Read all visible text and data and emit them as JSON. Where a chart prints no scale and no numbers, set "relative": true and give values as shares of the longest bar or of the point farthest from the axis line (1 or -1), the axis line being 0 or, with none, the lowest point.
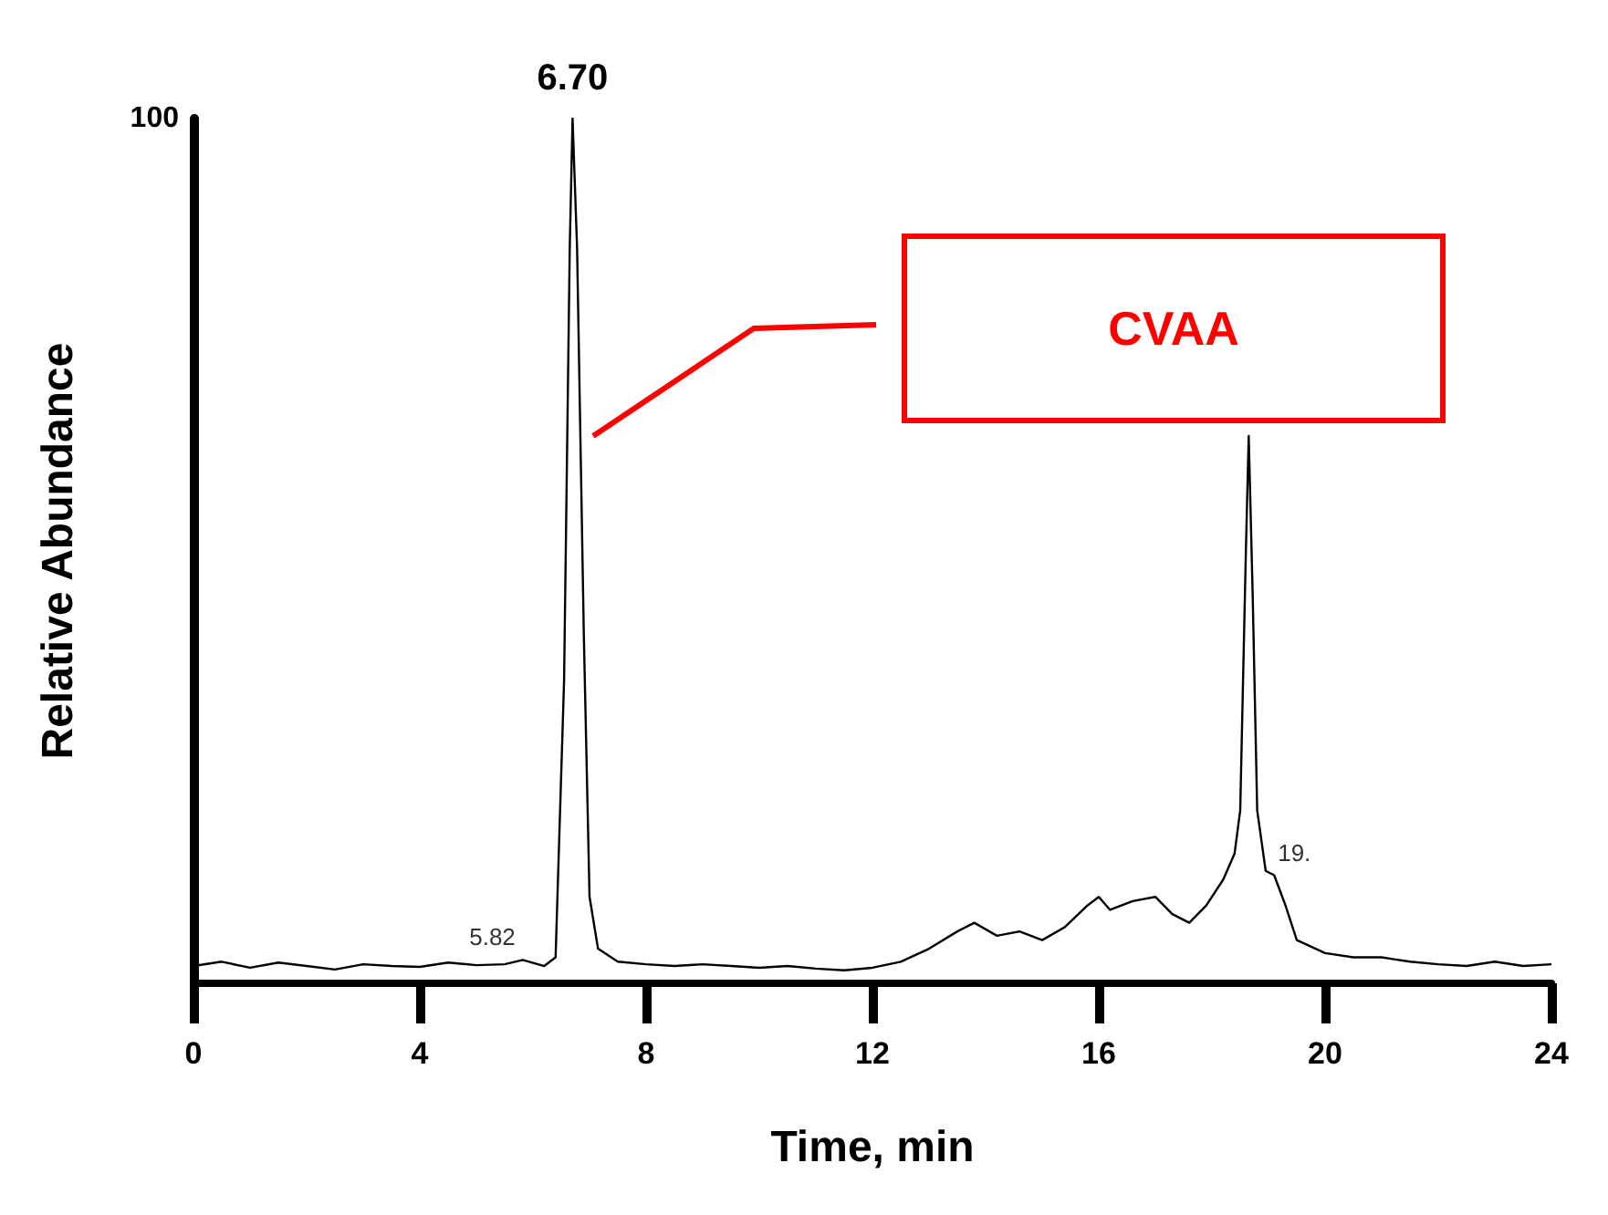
{
  "chart_data": {
    "type": "line",
    "relative": true,
    "xlabel": "Time, min",
    "ylabel": "Relative Abundance",
    "xlim": [
      0,
      24
    ],
    "xticks": [
      0,
      4,
      8,
      12,
      16,
      20,
      24
    ],
    "grid": false,
    "marker": "none",
    "line_style": "solid",
    "annotations": [
      "100",
      {
        "text": "6.70",
        "x": 6.7,
        "y": 1
      },
      {
        "text": "5.82",
        "x": 5.82,
        "y": 0.027
      },
      {
        "text": "19.",
        "x": 19.1,
        "y": 0.125
      },
      "CVAA"
    ],
    "series": [
      {
        "color": "#000000",
        "x": [
          0,
          0.5,
          1,
          1.5,
          2,
          2.5,
          3,
          3.5,
          4,
          4.5,
          5,
          5.5,
          5.82,
          6.2,
          6.4,
          6.55,
          6.65,
          6.7,
          6.78,
          6.9,
          7,
          7.15,
          7.5,
          8,
          8.5,
          9,
          9.5,
          10,
          10.5,
          11,
          11.5,
          12,
          12.5,
          13,
          13.5,
          13.8,
          14.2,
          14.6,
          15,
          15.4,
          15.8,
          16,
          16.2,
          16.6,
          17,
          17.3,
          17.6,
          17.9,
          18.2,
          18.4,
          18.5,
          18.6,
          18.65,
          18.72,
          18.8,
          18.95,
          19.1,
          19.3,
          19.5,
          20,
          20.5,
          21,
          21.5,
          22,
          22.5,
          23,
          23.5,
          24
        ],
        "values": [
          0.02,
          0.025,
          0.018,
          0.024,
          0.02,
          0.016,
          0.022,
          0.02,
          0.019,
          0.024,
          0.021,
          0.022,
          0.027,
          0.02,
          0.03,
          0.35,
          0.85,
          1,
          0.85,
          0.4,
          0.1,
          0.04,
          0.025,
          0.022,
          0.02,
          0.022,
          0.02,
          0.018,
          0.02,
          0.017,
          0.015,
          0.018,
          0.025,
          0.04,
          0.06,
          0.07,
          0.055,
          0.06,
          0.05,
          0.065,
          0.09,
          0.1,
          0.085,
          0.095,
          0.1,
          0.08,
          0.07,
          0.09,
          0.12,
          0.15,
          0.2,
          0.5,
          0.633,
          0.45,
          0.2,
          0.13,
          0.125,
          0.09,
          0.05,
          0.035,
          0.03,
          0.03,
          0.025,
          0.022,
          0.02,
          0.025,
          0.02,
          0.022
        ]
      }
    ]
  }
}
